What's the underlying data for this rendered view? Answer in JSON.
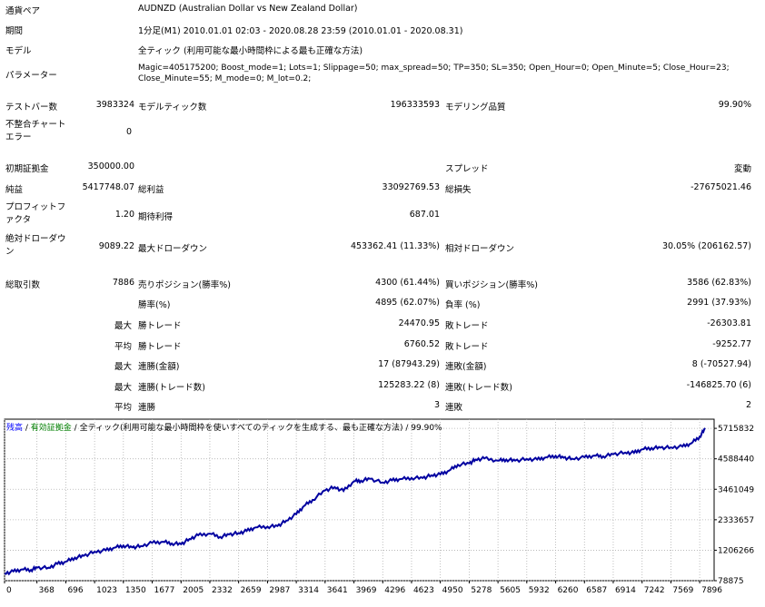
{
  "summary": {
    "pair_label": "通貨ペア",
    "pair_value": "AUDNZD (Australian Dollar vs New Zealand Dollar)",
    "period_label": "期間",
    "period_value": "1分足(M1) 2010.01.01 02:03 - 2020.08.28 23:59 (2010.01.01 - 2020.08.31)",
    "model_label": "モデル",
    "model_value": "全ティック (利用可能な最小時間枠による最も正確な方法)",
    "params_label": "パラメーター",
    "params_line1": "Magic=405175200; Boost_mode=1; Lots=1; Slippage=50; max_spread=50; TP=350; SL=350; Open_Hour=0; Open_Minute=5; Close_Hour=23;",
    "params_line2": "Close_Minute=55; M_mode=0; M_lot=0.2;"
  },
  "stats": {
    "bars_label": "テストバー数",
    "bars_value": "3983324",
    "ticks_label": "モデルティック数",
    "ticks_value": "196333593",
    "quality_label": "モデリング品質",
    "quality_value": "99.90%",
    "mismatch_label": "不整合チャート\nエラー",
    "mismatch_value": "0",
    "deposit_label": "初期証拠金",
    "deposit_value": "350000.00",
    "spread_label": "スプレッド",
    "spread_value": "変動",
    "net_label": "純益",
    "net_value": "5417748.07",
    "gross_profit_label": "総利益",
    "gross_profit_value": "33092769.53",
    "gross_loss_label": "総損失",
    "gross_loss_value": "-27675021.46",
    "pf_label": "プロフィットフ\nァクタ",
    "pf_value": "1.20",
    "payoff_label": "期待利得",
    "payoff_value": "687.01",
    "abs_dd_label": "絶対ドローダウ\nン",
    "abs_dd_value": "9089.22",
    "max_dd_label": "最大ドローダウン",
    "max_dd_value": "453362.41 (11.33%)",
    "rel_dd_label": "相対ドローダウン",
    "rel_dd_value": "30.05% (206162.57)",
    "trades_label": "総取引数",
    "trades_value": "7886",
    "short_label": "売りポジション(勝率%)",
    "short_value": "4300 (61.44%)",
    "long_label": "買いポジション(勝率%)",
    "long_value": "3586 (62.83%)",
    "winrate_label": "勝率(%)",
    "winrate_value": "4895 (62.07%)",
    "lossrate_label": "負率 (%)",
    "lossrate_value": "2991 (37.93%)",
    "max_word": "最大",
    "avg_word": "平均",
    "largest_win_label": "勝トレード",
    "largest_win_value": "24470.95",
    "largest_loss_label": "敗トレード",
    "largest_loss_value": "-26303.81",
    "avg_win_label": "勝トレード",
    "avg_win_value": "6760.52",
    "avg_loss_label": "敗トレード",
    "avg_loss_value": "-9252.77",
    "max_consec_win_amt_label": "連勝(金額)",
    "max_consec_win_amt_value": "17 (87943.29)",
    "max_consec_loss_amt_label": "連敗(金額)",
    "max_consec_loss_amt_value": "8 (-70527.94)",
    "max_consec_win_cnt_label": "連勝(トレード数)",
    "max_consec_win_cnt_value": "125283.22 (8)",
    "max_consec_loss_cnt_label": "連敗(トレード数)",
    "max_consec_loss_cnt_value": "-146825.70 (6)",
    "avg_consec_win_label": "連勝",
    "avg_consec_win_value": "3",
    "avg_consec_loss_label": "連敗",
    "avg_consec_loss_value": "2"
  },
  "chart_data": {
    "type": "line",
    "legend": {
      "balance": "残高",
      "sep1": " / ",
      "equity": "有効証拠金",
      "sep2": " / ",
      "model": "全ティック(利用可能な最小時間枠を使いすべてのティックを生成する、最も正確な方法)",
      "sep3": " / ",
      "quality": "99.90%"
    },
    "x_ticks": [
      "0",
      "368",
      "696",
      "1023",
      "1350",
      "1677",
      "2005",
      "2332",
      "2659",
      "2987",
      "3314",
      "3641",
      "3969",
      "4296",
      "4623",
      "4950",
      "5278",
      "5605",
      "5932",
      "6260",
      "6587",
      "6914",
      "7242",
      "7569",
      "7896"
    ],
    "y_ticks": [
      "5715832",
      "4588440",
      "3461049",
      "2333657",
      "1206266",
      "78875"
    ],
    "xlim": [
      0,
      8060
    ],
    "ylim": [
      78875,
      6055000
    ],
    "line_color": "#0000a0",
    "series": [
      {
        "x": [
          0,
          100,
          200,
          300,
          368,
          500,
          600,
          696,
          800,
          900,
          1023,
          1150,
          1250,
          1350,
          1450,
          1550,
          1677,
          1800,
          1900,
          2005,
          2100,
          2200,
          2332,
          2450,
          2550,
          2659,
          2750,
          2850,
          2987,
          3100,
          3200,
          3314,
          3400,
          3500,
          3641,
          3750,
          3850,
          3969,
          4050,
          4150,
          4296,
          4400,
          4500,
          4623,
          4750,
          4850,
          4950,
          5050,
          5150,
          5278,
          5350,
          5450,
          5605,
          5700,
          5800,
          5932,
          6050,
          6150,
          6260,
          6350,
          6450,
          6587,
          6700,
          6800,
          6914,
          7050,
          7150,
          7242,
          7350,
          7450,
          7569,
          7700,
          7800,
          7896,
          7960
        ],
        "y": [
          350000,
          420000,
          500000,
          480000,
          560000,
          560000,
          700000,
          780000,
          930000,
          1000000,
          1150000,
          1200000,
          1300000,
          1380000,
          1310000,
          1360000,
          1480000,
          1520000,
          1460000,
          1430000,
          1620000,
          1760000,
          1820000,
          1700000,
          1790000,
          1840000,
          1920000,
          2050000,
          2080000,
          2100000,
          2300000,
          2540000,
          2840000,
          3070000,
          3420000,
          3540000,
          3400000,
          3760000,
          3780000,
          3850000,
          3710000,
          3790000,
          3840000,
          3880000,
          3880000,
          3980000,
          4010000,
          4150000,
          4370000,
          4420000,
          4560000,
          4600000,
          4520000,
          4560000,
          4520000,
          4580000,
          4560000,
          4640000,
          4700000,
          4630000,
          4590000,
          4640000,
          4710000,
          4680000,
          4760000,
          4820000,
          4810000,
          4940000,
          4990000,
          5000000,
          5010000,
          5040000,
          5160000,
          5410000,
          5715832
        ]
      }
    ]
  }
}
